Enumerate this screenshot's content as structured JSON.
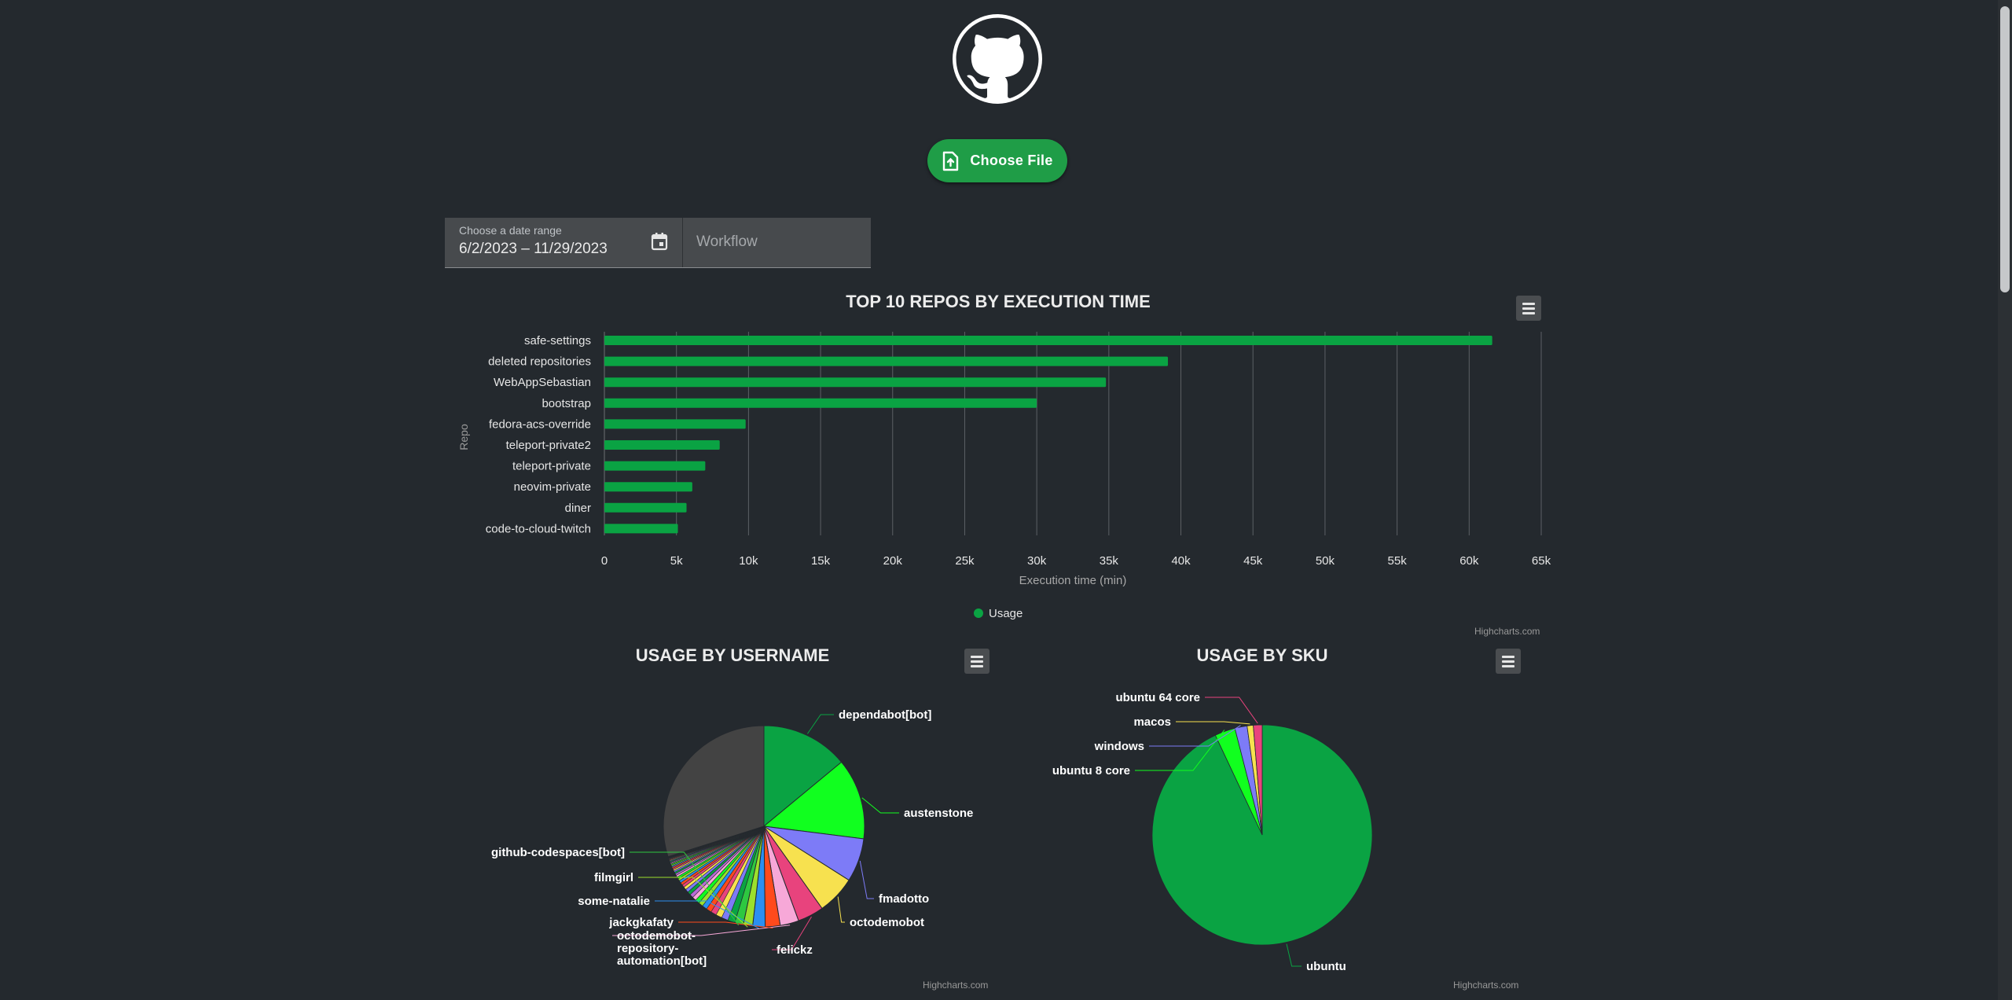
{
  "header": {
    "logo_icon": "github-octocat-icon",
    "choose_file_label": "Choose File",
    "choose_file_icon": "file-upload-icon"
  },
  "filters": {
    "date_label": "Choose a date range",
    "date_value": "6/2/2023 – 11/29/2023",
    "calendar_icon": "calendar-icon",
    "workflow_placeholder": "Workflow"
  },
  "colors": {
    "background": "#24292e",
    "accent": "#1f9d47",
    "series_green": "#0aa343"
  },
  "credits": "Highcharts.com",
  "chart_data": [
    {
      "type": "bar",
      "title": "TOP 10 REPOS BY EXECUTION TIME",
      "xlabel": "Repo",
      "ylabel": "Execution time (min)",
      "categories": [
        "safe-settings",
        "deleted repositories",
        "WebAppSebastian",
        "bootstrap",
        "fedora-acs-override",
        "teleport-private2",
        "teleport-private",
        "neovim-private",
        "diner",
        "code-to-cloud-twitch"
      ],
      "series": [
        {
          "name": "Usage",
          "values": [
            61600,
            39100,
            34800,
            30000,
            9800,
            8000,
            7000,
            6100,
            5700,
            5100
          ]
        }
      ],
      "ylim": [
        0,
        65000
      ],
      "ticks": [
        "0",
        "5k",
        "10k",
        "15k",
        "20k",
        "25k",
        "30k",
        "35k",
        "40k",
        "45k",
        "50k",
        "55k",
        "60k",
        "65k"
      ],
      "grid": true,
      "legend": "bottom-center"
    },
    {
      "type": "pie",
      "title": "USAGE BY USERNAME",
      "labels": [
        "dependabot[bot]",
        "austenstone",
        "fmadotto",
        "octodemobot",
        "felickz",
        "octodemobot-repository-automation[bot]",
        "jackgkafaty",
        "some-natalie",
        "filmgirl",
        "github-codespaces[bot]"
      ],
      "values": [
        14.0,
        13.0,
        7.0,
        6.2,
        4.2,
        3.0,
        2.4,
        2.0,
        1.5,
        1.4
      ],
      "others_count": 40,
      "others_value": 45.3
    },
    {
      "type": "pie",
      "title": "USAGE BY SKU",
      "labels": [
        "ubuntu",
        "ubuntu 8 core",
        "windows",
        "macos",
        "ubuntu 64 core"
      ],
      "values": [
        93.0,
        3.0,
        1.8,
        0.9,
        1.3
      ]
    }
  ]
}
